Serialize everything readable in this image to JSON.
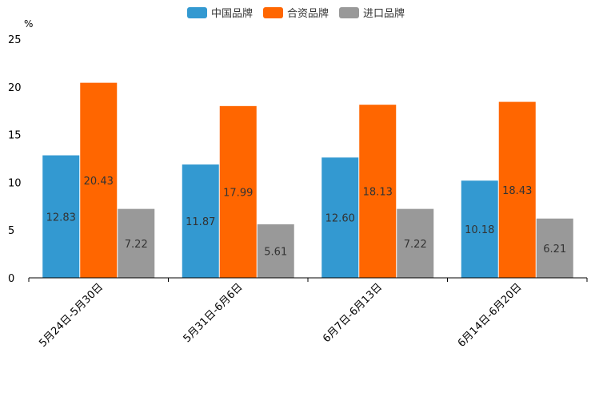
{
  "chart_data": {
    "type": "bar",
    "unit": "%",
    "ylim": [
      0,
      25
    ],
    "yticks": [
      0,
      5,
      10,
      15,
      20,
      25
    ],
    "categories": [
      "5月24日-5月30日",
      "5月31日-6月6日",
      "6月7日-6月13日",
      "6月14日-6月20日"
    ],
    "series": [
      {
        "name": "中国品牌",
        "color": "#3399d1",
        "values": [
          12.83,
          11.87,
          12.6,
          10.18
        ],
        "labels": [
          "12.83",
          "11.87",
          "12.60",
          "10.18"
        ]
      },
      {
        "name": "合资品牌",
        "color": "#ff6600",
        "values": [
          20.43,
          17.99,
          18.13,
          18.43
        ],
        "labels": [
          "20.43",
          "17.99",
          "18.13",
          "18.43"
        ]
      },
      {
        "name": "进口品牌",
        "color": "#999999",
        "values": [
          7.22,
          5.61,
          7.22,
          6.21
        ],
        "labels": [
          "7.22",
          "5.61",
          "7.22",
          "6.21"
        ]
      }
    ]
  }
}
